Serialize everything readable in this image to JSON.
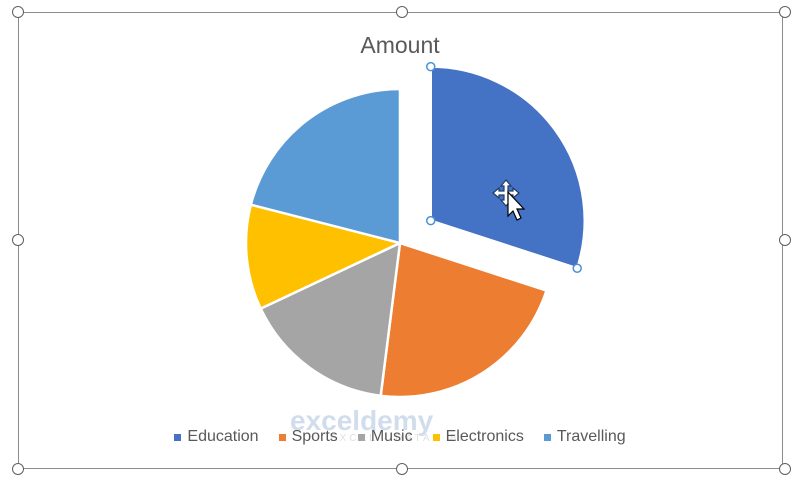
{
  "chart_data": {
    "type": "pie",
    "title": "Amount",
    "categories": [
      "Education",
      "Sports",
      "Music",
      "Electronics",
      "Travelling"
    ],
    "values": [
      30,
      22,
      16,
      11,
      21
    ],
    "colors": [
      "#4472c4",
      "#ed7d31",
      "#a5a5a5",
      "#ffc000",
      "#5b9bd5"
    ],
    "exploded": "Education",
    "selected": "Education",
    "legend_position": "bottom"
  },
  "watermark": {
    "name": "exceldemy",
    "tagline": "EXCEL · DATA · BI"
  },
  "cursor": "move-icon"
}
